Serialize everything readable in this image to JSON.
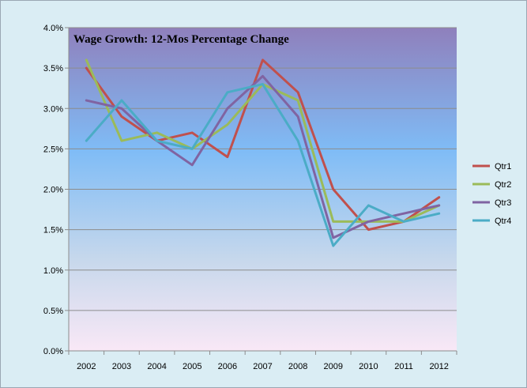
{
  "chart_data": {
    "type": "line",
    "title": "Wage Growth: 12-Mos Percentage Change",
    "xlabel": "",
    "ylabel": "",
    "categories": [
      "2002",
      "2003",
      "2004",
      "2005",
      "2006",
      "2007",
      "2008",
      "2009",
      "2010",
      "2011",
      "2012"
    ],
    "ylim": [
      0,
      4.0
    ],
    "y_ticks": [
      "0.0%",
      "0.5%",
      "1.0%",
      "1.5%",
      "2.0%",
      "2.5%",
      "3.0%",
      "3.5%",
      "4.0%"
    ],
    "grid": true,
    "legend_position": "right",
    "series": [
      {
        "name": "Qtr1",
        "color": "#c0504d",
        "values": [
          3.5,
          2.9,
          2.6,
          2.7,
          2.4,
          3.6,
          3.2,
          2.0,
          1.5,
          1.6,
          1.9
        ]
      },
      {
        "name": "Qtr2",
        "color": "#9bbb59",
        "values": [
          3.6,
          2.6,
          2.7,
          2.5,
          2.8,
          3.3,
          3.1,
          1.6,
          1.6,
          1.6,
          1.8
        ]
      },
      {
        "name": "Qtr3",
        "color": "#8064a2",
        "values": [
          3.1,
          3.0,
          2.6,
          2.3,
          3.0,
          3.4,
          2.9,
          1.4,
          1.6,
          1.7,
          1.8
        ]
      },
      {
        "name": "Qtr4",
        "color": "#4bacc6",
        "values": [
          2.6,
          3.1,
          2.6,
          2.5,
          3.2,
          3.3,
          2.6,
          1.3,
          1.8,
          1.6,
          1.7
        ]
      }
    ]
  }
}
